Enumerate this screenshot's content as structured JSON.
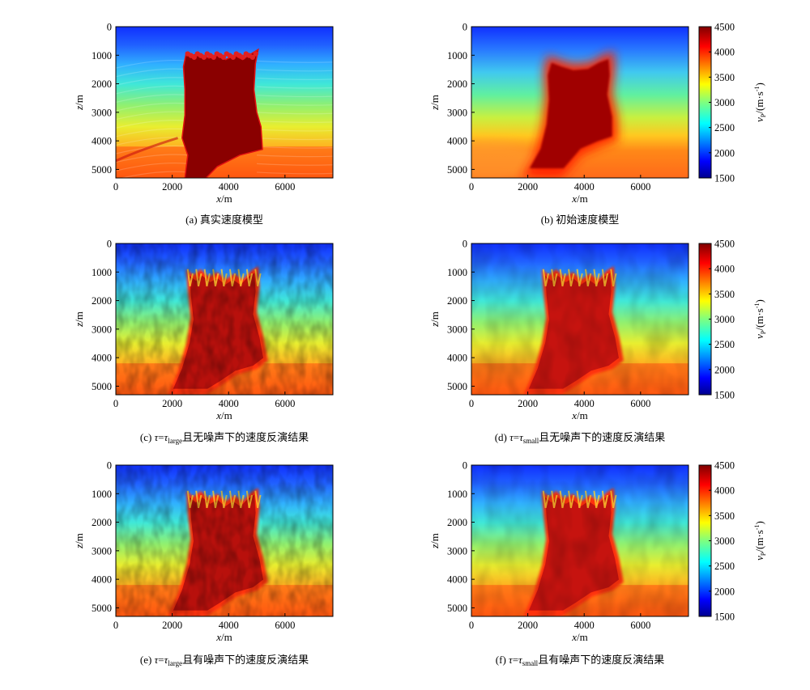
{
  "figure": {
    "panels": [
      {
        "id": "a",
        "caption": "(a) 真实速度模型",
        "variant": "true",
        "colorbar": false
      },
      {
        "id": "b",
        "caption": "(b) 初始速度模型",
        "variant": "initial",
        "colorbar": true
      },
      {
        "id": "c",
        "caption_prefix": "(c) ",
        "tau": "τ",
        "eq": "=",
        "tau_sub": "large",
        "caption_suffix": "且无噪声下的速度反演结果",
        "variant": "inv_large_clean",
        "colorbar": false
      },
      {
        "id": "d",
        "caption_prefix": "(d) ",
        "tau": "τ",
        "eq": "=",
        "tau_sub": "small",
        "caption_suffix": "且无噪声下的速度反演结果",
        "variant": "inv_small_clean",
        "colorbar": true
      },
      {
        "id": "e",
        "caption_prefix": "(e) ",
        "tau": "τ",
        "eq": "=",
        "tau_sub": "large",
        "caption_suffix": "且有噪声下的速度反演结果",
        "variant": "inv_large_noisy",
        "colorbar": false
      },
      {
        "id": "f",
        "caption_prefix": "(f) ",
        "tau": "τ",
        "eq": "=",
        "tau_sub": "small",
        "caption_suffix": "且有噪声下的速度反演结果",
        "variant": "inv_small_noisy",
        "colorbar": true
      }
    ],
    "axes": {
      "x_label_var": "x",
      "x_label_unit": "/m",
      "z_label_var": "z",
      "z_label_unit": "/m",
      "x_ticks": [
        "0",
        "2000",
        "4000",
        "6000"
      ],
      "x_tick_values": [
        0,
        2000,
        4000,
        6000
      ],
      "x_range": [
        0,
        7700
      ],
      "z_ticks": [
        "0",
        "1000",
        "2000",
        "3000",
        "4000",
        "5000"
      ],
      "z_tick_values": [
        0,
        1000,
        2000,
        3000,
        4000,
        5000
      ],
      "z_range": [
        0,
        5300
      ]
    },
    "colorbar": {
      "label_var": "v",
      "label_sub": "P",
      "label_unit": "/(m·s",
      "label_exp": "-1",
      "label_close": ")",
      "ticks": [
        "4500",
        "4000",
        "3500",
        "3000",
        "2500",
        "2000",
        "1500"
      ],
      "tick_values": [
        4500,
        4000,
        3500,
        3000,
        2500,
        2000,
        1500
      ],
      "range": [
        1500,
        4500
      ],
      "colormap": "jet"
    }
  }
}
